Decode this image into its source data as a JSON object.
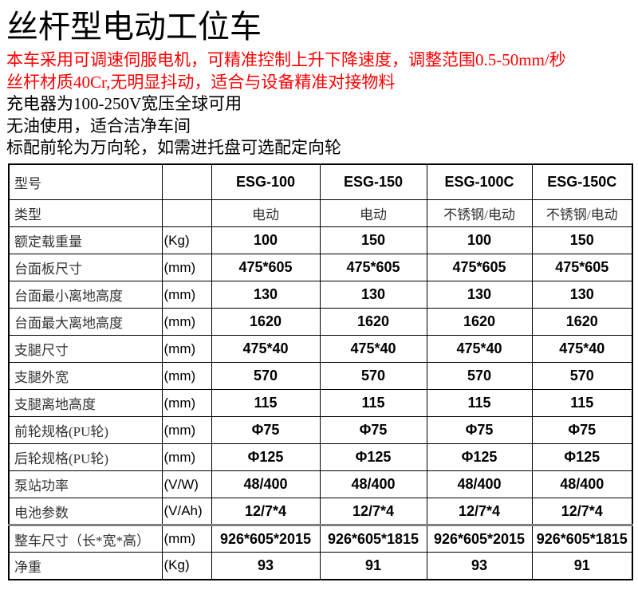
{
  "page": {
    "title": "丝杆型电动工位车",
    "intro_lines": [
      {
        "text": "本车采用可调速伺服电机，可精准控制上升下降速度，调整范围0.5-50mm/秒",
        "emphasis": "red"
      },
      {
        "text": "丝杆材质40Cr,无明显抖动，适合与设备精准对接物料",
        "emphasis": "red"
      },
      {
        "text": "充电器为100-250V宽压全球可用",
        "emphasis": "black"
      },
      {
        "text": "无油使用，适合洁净车间",
        "emphasis": "black"
      },
      {
        "text": "标配前轮为万向轮，如需进托盘可选配定向轮",
        "emphasis": "black"
      }
    ]
  },
  "colors": {
    "emphasis_red": "#fe0000",
    "text_black": "#000000",
    "table_border": "#000000",
    "thick_divider_gray": "#808080"
  },
  "spec_table": {
    "models": [
      "ESG-100",
      "ESG-150",
      "ESG-100C",
      "ESG-150C"
    ],
    "rows": [
      {
        "kind": "model",
        "label": "型号",
        "unit": "",
        "values": [
          "ESG-100",
          "ESG-150",
          "ESG-100C",
          "ESG-150C"
        ]
      },
      {
        "kind": "type",
        "label": "类型",
        "unit": "",
        "values": [
          "电动",
          "电动",
          "不锈钢/电动",
          "不锈钢/电动"
        ]
      },
      {
        "kind": "spec",
        "label": "额定载重量",
        "unit": "(Kg)",
        "values": [
          "100",
          "150",
          "100",
          "150"
        ]
      },
      {
        "kind": "spec",
        "label": "台面板尺寸",
        "unit": "(mm)",
        "values": [
          "475*605",
          "475*605",
          "475*605",
          "475*605"
        ]
      },
      {
        "kind": "spec",
        "label": "台面最小离地高度",
        "unit": "(mm)",
        "values": [
          "130",
          "130",
          "130",
          "130"
        ]
      },
      {
        "kind": "spec",
        "label": "台面最大离地高度",
        "unit": "(mm)",
        "values": [
          "1620",
          "1620",
          "1620",
          "1620"
        ]
      },
      {
        "kind": "spec",
        "label": "支腿尺寸",
        "unit": "(mm)",
        "values": [
          "475*40",
          "475*40",
          "475*40",
          "475*40"
        ]
      },
      {
        "kind": "spec",
        "label": "支腿外宽",
        "unit": "(mm)",
        "values": [
          "570",
          "570",
          "570",
          "570"
        ]
      },
      {
        "kind": "spec",
        "label": "支腿离地高度",
        "unit": "(mm)",
        "values": [
          "115",
          "115",
          "115",
          "115"
        ]
      },
      {
        "kind": "spec",
        "label": "前轮规格(PU轮)",
        "unit": "(mm)",
        "values": [
          "Φ75",
          "Φ75",
          "Φ75",
          "Φ75"
        ]
      },
      {
        "kind": "spec",
        "label": "后轮规格(PU轮)",
        "unit": "(mm)",
        "values": [
          "Φ125",
          "Φ125",
          "Φ125",
          "Φ125"
        ]
      },
      {
        "kind": "spec",
        "label": "泵站功率",
        "unit": "(V/W)",
        "values": [
          "48/400",
          "48/400",
          "48/400",
          "48/400"
        ]
      },
      {
        "kind": "spec",
        "label": "电池参数",
        "unit": "(V/Ah)",
        "values": [
          "12/7*4",
          "12/7*4",
          "12/7*4",
          "12/7*4"
        ]
      },
      {
        "kind": "spec",
        "label": "整车尺寸（长*宽*高）",
        "unit": "(mm)",
        "values": [
          "926*605*2015",
          "926*605*1815",
          "926*605*2015",
          "926*605*1815"
        ],
        "divider_above": true
      },
      {
        "kind": "spec",
        "label": "净重",
        "unit": "(Kg)",
        "values": [
          "93",
          "91",
          "93",
          "91"
        ]
      }
    ]
  }
}
